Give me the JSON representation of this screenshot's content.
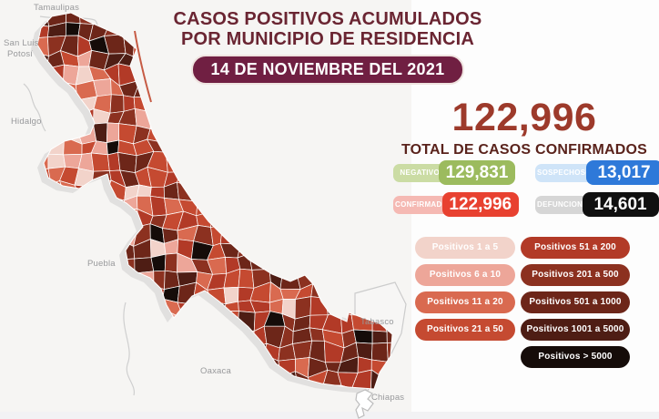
{
  "header": {
    "title_line1": "CASOS POSITIVOS ACUMULADOS",
    "title_line2": "POR MUNICIPIO DE RESIDENCIA",
    "date_badge": "14 DE NOVIEMBRE DEL 2021"
  },
  "summary": {
    "total_value": "122,996",
    "total_label": "TOTAL DE CASOS CONFIRMADOS"
  },
  "stats": [
    {
      "label": "NEGATIVOS",
      "value": "129,831",
      "label_bg": "#cbdca4",
      "value_bg": "#9cbb5e"
    },
    {
      "label": "SOSPECHOSOS",
      "value": "13,017",
      "label_bg": "#cfe4f8",
      "value_bg": "#2e79d9"
    },
    {
      "label": "CONFIRMADOS",
      "value": "122,996",
      "label_bg": "#f5b9b3",
      "value_bg": "#e84130"
    },
    {
      "label": "DEFUNCIONES",
      "value": "14,601",
      "label_bg": "#d6d6d6",
      "value_bg": "#101010"
    }
  ],
  "legend": {
    "left": [
      {
        "label": "Positivos 1 a 5",
        "color": "#f2d3ca"
      },
      {
        "label": "Positivos 6 a 10",
        "color": "#eda699"
      },
      {
        "label": "Positivos 11 a 20",
        "color": "#d96a50"
      },
      {
        "label": "Positivos 21 a 50",
        "color": "#c54a31"
      }
    ],
    "right": [
      {
        "label": "Positivos 51 a 200",
        "color": "#b23a27"
      },
      {
        "label": "Positivos 201 a 500",
        "color": "#8c3120"
      },
      {
        "label": "Positivos 501 a 1000",
        "color": "#6d2619"
      },
      {
        "label": "Positivos 1001 a 5000",
        "color": "#4e1d14"
      },
      {
        "label": "Positivos > 5000",
        "color": "#150c09"
      }
    ]
  },
  "map": {
    "labels": {
      "tamaulipas": "Tamaulipas",
      "san_luis": "San Luis",
      "potosi": "Potosí",
      "hidalgo": "Hidalgo",
      "puebla": "Puebla",
      "oaxaca": "Oaxaca",
      "tabasco": "Tabasco",
      "chiapas": "Chiapas"
    }
  }
}
